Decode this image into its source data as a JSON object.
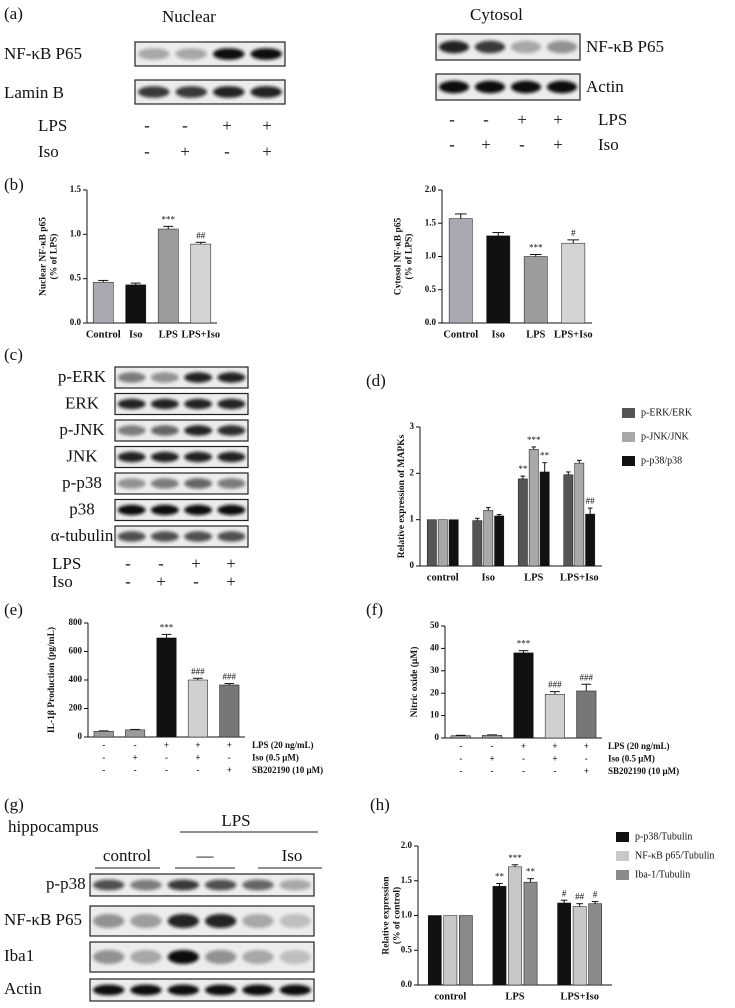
{
  "panel_labels": [
    "(a)",
    "(b)",
    "(c)",
    "(d)",
    "(e)",
    "(f)",
    "(g)",
    "(h)"
  ],
  "blots": {
    "nuclear": {
      "title": "Nuclear",
      "rows": [
        "NF-κB P65",
        "Lamin B"
      ],
      "conditions": [
        {
          "label": "LPS",
          "signs": [
            "-",
            "-",
            "+",
            "+"
          ]
        },
        {
          "label": "Iso",
          "signs": [
            "-",
            "+",
            "-",
            "+"
          ]
        }
      ]
    },
    "cytosol": {
      "title": "Cytosol",
      "rows": [
        "NF-κB P65",
        "Actin"
      ],
      "conditions": [
        {
          "label": "LPS",
          "signs": [
            "-",
            "-",
            "+",
            "+"
          ]
        },
        {
          "label": "Iso",
          "signs": [
            "-",
            "+",
            "-",
            "+"
          ]
        }
      ]
    },
    "mapk": {
      "rows": [
        "p-ERK",
        "ERK",
        "p-JNK",
        "JNK",
        "p-p38",
        "p38",
        "α-tubulin"
      ],
      "conditions": [
        {
          "label": "LPS",
          "signs": [
            "-",
            "-",
            "+",
            "+"
          ]
        },
        {
          "label": "Iso",
          "signs": [
            "-",
            "+",
            "-",
            "+"
          ]
        }
      ]
    },
    "hippocampus": {
      "title": "hippocampus",
      "group": "LPS",
      "subgroups": [
        "control",
        "—",
        "Iso"
      ],
      "rows": [
        "p-p38",
        "NF-κB P65",
        "Iba1",
        "Actin"
      ]
    }
  },
  "chart_data": [
    {
      "type": "bar",
      "ylabel": [
        "Nuclear NF-κB p65",
        "(% of LPS)"
      ],
      "categories": [
        "Control",
        "Iso",
        "LPS",
        "LPS+Iso"
      ],
      "values": [
        0.46,
        0.43,
        1.06,
        0.89
      ],
      "errors": [
        0.02,
        0.02,
        0.03,
        0.02
      ],
      "annotations": [
        null,
        null,
        "***",
        "##"
      ],
      "colors": [
        "#a9a9b1",
        "#111111",
        "#9c9c9c",
        "#d4d4d4"
      ],
      "ylim": [
        0,
        1.5
      ],
      "yticks": [
        {
          "value": 0,
          "label": "0.0"
        },
        0.5,
        {
          "value": 1,
          "label": "1.0"
        },
        1.5
      ]
    },
    {
      "type": "bar",
      "ylabel": [
        "Cytosol NF-κB p65",
        "(% of LPS)"
      ],
      "categories": [
        "Control",
        "Iso",
        "LPS",
        "LPS+Iso"
      ],
      "values": [
        1.57,
        1.31,
        1.0,
        1.2
      ],
      "errors": [
        0.07,
        0.05,
        0.03,
        0.05
      ],
      "annotations": [
        null,
        null,
        "***",
        "#"
      ],
      "colors": [
        "#a9a9b1",
        "#111111",
        "#9c9c9c",
        "#d4d4d4"
      ],
      "ylim": [
        0,
        2
      ],
      "yticks": [
        {
          "value": 0,
          "label": "0.0"
        },
        0.5,
        {
          "value": 1,
          "label": "1.0"
        },
        1.5,
        {
          "value": 2,
          "label": "2.0"
        }
      ]
    },
    {
      "type": "bar",
      "ylabel": [
        "Relative expression of MAPKs"
      ],
      "categories": [
        "control",
        "Iso",
        "LPS",
        "LPS+Iso"
      ],
      "legend": "right",
      "series": [
        {
          "name": "p-ERK/ERK",
          "color": "#555555",
          "values": [
            1.0,
            0.98,
            1.88,
            1.97
          ],
          "errors": [
            0.0,
            0.05,
            0.06,
            0.06
          ],
          "annotations": [
            null,
            null,
            "**",
            null
          ]
        },
        {
          "name": "p-JNK/JNK",
          "color": "#a8a8a8",
          "values": [
            1.0,
            1.2,
            2.52,
            2.22
          ],
          "errors": [
            0.0,
            0.06,
            0.05,
            0.06
          ],
          "annotations": [
            null,
            null,
            "***",
            null
          ]
        },
        {
          "name": "p-p38/p38",
          "color": "#111111",
          "values": [
            1.0,
            1.08,
            2.03,
            1.12
          ],
          "errors": [
            0.0,
            0.03,
            0.2,
            0.13
          ],
          "annotations": [
            null,
            null,
            "**",
            "##"
          ]
        }
      ],
      "ylim": [
        0,
        3
      ],
      "yticks": [
        0,
        1,
        2,
        3
      ]
    },
    {
      "type": "bar",
      "ylabel": [
        "IL-1β Production (pg/mL)"
      ],
      "values": [
        40,
        50,
        695,
        400,
        365
      ],
      "errors": [
        3,
        3,
        25,
        12,
        10
      ],
      "annotations": [
        null,
        null,
        "***",
        "###",
        "###"
      ],
      "colors": [
        "#9a9a9a",
        "#9a9a9a",
        "#111111",
        "#d0d0d0",
        "#777777"
      ],
      "conditions": [
        {
          "label": "LPS (20 ng/mL)",
          "signs": [
            "-",
            "-",
            "+",
            "+",
            "+"
          ]
        },
        {
          "label": "Iso (0.5 μM)",
          "signs": [
            "-",
            "+",
            "-",
            "+",
            "-"
          ]
        },
        {
          "label": "SB202190 (10 μM)",
          "signs": [
            "-",
            "-",
            "-",
            "-",
            "+"
          ]
        }
      ],
      "ylim": [
        0,
        800
      ],
      "yticks": [
        0,
        200,
        400,
        600,
        800
      ]
    },
    {
      "type": "bar",
      "ylabel": [
        "Nitric oxide (μM)"
      ],
      "values": [
        1,
        1.2,
        38,
        19.5,
        21
      ],
      "errors": [
        0.2,
        0.2,
        1,
        1.2,
        3
      ],
      "annotations": [
        null,
        null,
        "***",
        "###",
        "###"
      ],
      "colors": [
        "#9a9a9a",
        "#9a9a9a",
        "#111111",
        "#d0d0d0",
        "#777777"
      ],
      "conditions": [
        {
          "label": "LPS (20 ng/mL)",
          "signs": [
            "-",
            "-",
            "+",
            "+",
            "+"
          ]
        },
        {
          "label": "Iso (0.5 μM)",
          "signs": [
            "-",
            "+",
            "-",
            "+",
            "-"
          ]
        },
        {
          "label": "SB202190 (10 μM)",
          "signs": [
            "-",
            "-",
            "-",
            "-",
            "+"
          ]
        }
      ],
      "ylim": [
        0,
        50
      ],
      "yticks": [
        0,
        10,
        20,
        30,
        40,
        50
      ]
    },
    {
      "type": "bar",
      "ylabel": [
        "Relative expression",
        "(% of control)"
      ],
      "categories": [
        "control",
        "LPS",
        "LPS+Iso"
      ],
      "legend": "right",
      "series": [
        {
          "name": "p-p38/Tubulin",
          "color": "#111111",
          "values": [
            1.0,
            1.42,
            1.18
          ],
          "errors": [
            0.0,
            0.04,
            0.04
          ],
          "annotations": [
            null,
            "**",
            "#"
          ]
        },
        {
          "name": "NF-κB p65/Tubulin",
          "color": "#c8c8c8",
          "values": [
            1.0,
            1.7,
            1.13
          ],
          "errors": [
            0.0,
            0.03,
            0.04
          ],
          "annotations": [
            null,
            "***",
            "##"
          ]
        },
        {
          "name": "Iba-1/Tubulin",
          "color": "#8a8a8a",
          "values": [
            1.0,
            1.48,
            1.17
          ],
          "errors": [
            0.0,
            0.05,
            0.03
          ],
          "annotations": [
            null,
            "**",
            "#"
          ]
        }
      ],
      "ylim": [
        0,
        2
      ],
      "yticks": [
        {
          "value": 0,
          "label": "0.0"
        },
        0.5,
        {
          "value": 1,
          "label": "1.0"
        },
        1.5,
        {
          "value": 2,
          "label": "2.0"
        }
      ]
    }
  ]
}
